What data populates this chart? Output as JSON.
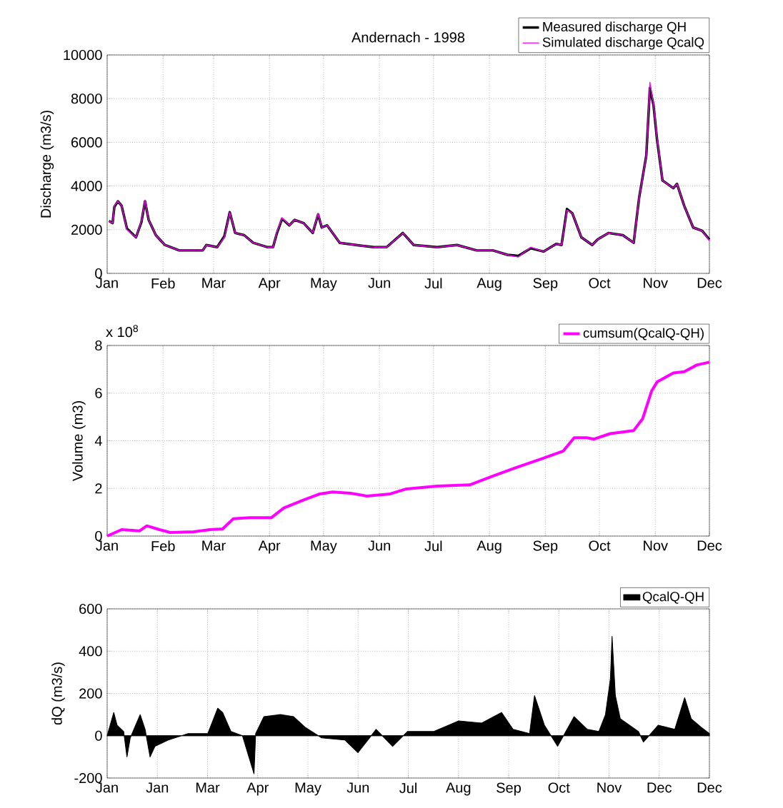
{
  "chart_data": [
    {
      "type": "line",
      "title": "Andernach - 1998",
      "ylabel": "Discharge (m3/s)",
      "x": [
        "1998-01-02",
        "1998-01-04",
        "1998-01-05",
        "1998-01-07",
        "1998-01-09",
        "1998-01-12",
        "1998-01-17",
        "1998-01-20",
        "1998-01-22",
        "1998-01-24",
        "1998-01-28",
        "1998-02-02",
        "1998-02-10",
        "1998-02-23",
        "1998-02-25",
        "1998-03-03",
        "1998-03-07",
        "1998-03-10",
        "1998-03-13",
        "1998-03-18",
        "1998-03-23",
        "1998-03-31",
        "1998-04-03",
        "1998-04-05",
        "1998-04-08",
        "1998-04-12",
        "1998-04-15",
        "1998-04-20",
        "1998-04-25",
        "1998-04-28",
        "1998-04-30",
        "1998-05-03",
        "1998-05-10",
        "1998-05-19",
        "1998-05-29",
        "1998-06-05",
        "1998-06-14",
        "1998-06-20",
        "1998-07-03",
        "1998-07-14",
        "1998-07-25",
        "1998-08-03",
        "1998-08-11",
        "1998-08-17",
        "1998-08-24",
        "1998-08-31",
        "1998-09-07",
        "1998-09-10",
        "1998-09-13",
        "1998-09-16",
        "1998-09-21",
        "1998-09-27",
        "1998-09-30",
        "1998-10-06",
        "1998-10-14",
        "1998-10-20",
        "1998-10-23",
        "1998-10-27",
        "1998-10-29",
        "1998-10-31",
        "1998-11-02",
        "1998-11-05",
        "1998-11-11",
        "1998-11-13",
        "1998-11-17",
        "1998-11-22",
        "1998-11-27",
        "1998-12-01"
      ],
      "series": [
        {
          "name": "Measured discharge QH",
          "color": "#000000",
          "values": [
            2400,
            2300,
            3050,
            3300,
            3100,
            2050,
            1650,
            2350,
            3300,
            2450,
            1750,
            1300,
            1050,
            1050,
            1300,
            1200,
            1700,
            2800,
            1850,
            1750,
            1400,
            1200,
            1200,
            1800,
            2500,
            2200,
            2450,
            2300,
            1850,
            2700,
            2100,
            2200,
            1400,
            1300,
            1200,
            1200,
            1850,
            1300,
            1200,
            1300,
            1050,
            1050,
            850,
            800,
            1150,
            1000,
            1350,
            1300,
            2950,
            2750,
            1650,
            1300,
            1550,
            1850,
            1750,
            1400,
            3450,
            5400,
            8500,
            7700,
            6100,
            4250,
            3900,
            4100,
            3100,
            2100,
            1950,
            1550
          ]
        },
        {
          "name": "Simulated discharge QcalQ",
          "color": "#ff00ff",
          "values": [
            2400,
            2300,
            3100,
            3300,
            3100,
            2000,
            1650,
            2400,
            3350,
            2450,
            1750,
            1300,
            1050,
            1050,
            1300,
            1200,
            1650,
            2800,
            1850,
            1750,
            1400,
            1200,
            1200,
            1850,
            2550,
            2200,
            2450,
            2300,
            1850,
            2750,
            2100,
            2200,
            1400,
            1300,
            1200,
            1200,
            1850,
            1300,
            1200,
            1300,
            1050,
            1050,
            850,
            750,
            1200,
            1000,
            1350,
            1300,
            2900,
            2750,
            1650,
            1300,
            1550,
            1850,
            1750,
            1400,
            3450,
            5400,
            8750,
            7750,
            6150,
            4250,
            3900,
            4100,
            3100,
            2100,
            1950,
            1500
          ]
        }
      ],
      "xlim": [
        "1998-01-01",
        "1998-12-01"
      ],
      "xticks": [
        {
          "value": "1998-01-01",
          "label": "Jan"
        },
        {
          "value": "1998-02-01",
          "label": "Feb"
        },
        {
          "value": "1998-03-01",
          "label": "Mar"
        },
        {
          "value": "1998-04-01",
          "label": "Apr"
        },
        {
          "value": "1998-05-01",
          "label": "May"
        },
        {
          "value": "1998-06-01",
          "label": "Jun"
        },
        {
          "value": "1998-07-01",
          "label": "Jul"
        },
        {
          "value": "1998-08-01",
          "label": "Aug"
        },
        {
          "value": "1998-09-01",
          "label": "Sep"
        },
        {
          "value": "1998-10-01",
          "label": "Oct"
        },
        {
          "value": "1998-11-01",
          "label": "Nov"
        },
        {
          "value": "1998-12-01",
          "label": "Dec"
        }
      ],
      "ylim": [
        0,
        10000
      ],
      "yticks": [
        0,
        2000,
        4000,
        6000,
        8000,
        10000
      ],
      "grid": true,
      "legend": "top right"
    },
    {
      "type": "line",
      "ylabel": "Volume (m3)",
      "annotations": [
        "x 10$^{8}$"
      ],
      "x": [
        "1998-01-01",
        "1998-01-09",
        "1998-01-19",
        "1998-01-23",
        "1998-01-30",
        "1998-02-05",
        "1998-02-18",
        "1998-02-27",
        "1998-03-06",
        "1998-03-12",
        "1998-03-21",
        "1998-04-02",
        "1998-04-09",
        "1998-04-20",
        "1998-04-29",
        "1998-05-06",
        "1998-05-16",
        "1998-05-25",
        "1998-06-07",
        "1998-06-16",
        "1998-07-03",
        "1998-07-21",
        "1998-08-03",
        "1998-08-16",
        "1998-08-31",
        "1998-09-11",
        "1998-09-17",
        "1998-09-24",
        "1998-09-28",
        "1998-10-07",
        "1998-10-20",
        "1998-10-25",
        "1998-10-30",
        "1998-11-02",
        "1998-11-11",
        "1998-11-17",
        "1998-11-24",
        "1998-12-01"
      ],
      "series": [
        {
          "name": "cumsum(QcalQ-QH)",
          "color": "#ff00ff",
          "values": [
            0,
            0.27,
            0.22,
            0.43,
            0.27,
            0.15,
            0.18,
            0.27,
            0.3,
            0.73,
            0.77,
            0.77,
            1.18,
            1.52,
            1.77,
            1.85,
            1.8,
            1.68,
            1.77,
            1.98,
            2.1,
            2.15,
            2.52,
            2.88,
            3.27,
            3.57,
            4.13,
            4.13,
            4.07,
            4.3,
            4.43,
            4.93,
            6.1,
            6.47,
            6.85,
            6.9,
            7.18,
            7.3
          ]
        }
      ],
      "xlim": [
        "1998-01-01",
        "1998-12-01"
      ],
      "xticks": [
        {
          "value": "1998-01-01",
          "label": "Jan"
        },
        {
          "value": "1998-02-01",
          "label": "Feb"
        },
        {
          "value": "1998-03-01",
          "label": "Mar"
        },
        {
          "value": "1998-04-01",
          "label": "Apr"
        },
        {
          "value": "1998-05-01",
          "label": "May"
        },
        {
          "value": "1998-06-01",
          "label": "Jun"
        },
        {
          "value": "1998-07-01",
          "label": "Jul"
        },
        {
          "value": "1998-08-01",
          "label": "Aug"
        },
        {
          "value": "1998-09-01",
          "label": "Sep"
        },
        {
          "value": "1998-10-01",
          "label": "Oct"
        },
        {
          "value": "1998-11-01",
          "label": "Nov"
        },
        {
          "value": "1998-12-01",
          "label": "Dec"
        }
      ],
      "ylim": [
        0,
        8
      ],
      "yticks": [
        0,
        2,
        4,
        6,
        8
      ],
      "grid": true,
      "legend": "top right"
    },
    {
      "type": "area",
      "ylabel": "dQ (m3/s)",
      "x": [
        "1998-01-01",
        "1998-01-05",
        "1998-01-07",
        "1998-01-11",
        "1998-01-13",
        "1998-01-15",
        "1998-01-21",
        "1998-01-24",
        "1998-01-27",
        "1998-01-30",
        "1998-02-07",
        "1998-02-19",
        "1998-03-03",
        "1998-03-09",
        "1998-03-12",
        "1998-03-17",
        "1998-03-24",
        "1998-03-31",
        "1998-04-01",
        "1998-04-06",
        "1998-04-16",
        "1998-04-24",
        "1998-05-01",
        "1998-05-11",
        "1998-05-25",
        "1998-06-02",
        "1998-06-13",
        "1998-06-23",
        "1998-07-02",
        "1998-07-18",
        "1998-08-02",
        "1998-08-16",
        "1998-08-28",
        "1998-09-04",
        "1998-09-14",
        "1998-09-17",
        "1998-09-23",
        "1998-10-01",
        "1998-10-11",
        "1998-10-19",
        "1998-10-26",
        "1998-10-30",
        "1998-11-02",
        "1998-11-03",
        "1998-11-05",
        "1998-11-08",
        "1998-11-19",
        "1998-11-22",
        "1998-12-01",
        "1998-12-11",
        "1998-12-17",
        "1998-12-21",
        "1998-12-27",
        "1998-12-31T23:59"
      ],
      "series": [
        {
          "name": "QcalQ-QH",
          "color": "#000000",
          "values": [
            0,
            110,
            50,
            20,
            -100,
            -10,
            100,
            30,
            -100,
            -50,
            -20,
            10,
            10,
            130,
            110,
            20,
            0,
            -180,
            10,
            90,
            100,
            90,
            40,
            -10,
            -20,
            -80,
            30,
            -50,
            20,
            20,
            70,
            60,
            110,
            30,
            10,
            190,
            50,
            -50,
            90,
            30,
            20,
            100,
            270,
            470,
            190,
            80,
            20,
            -30,
            50,
            30,
            180,
            80,
            40,
            10
          ]
        }
      ],
      "xlim": [
        "1998-01-01",
        "1998-12-31T23:59"
      ],
      "xticks": [
        {
          "value": "1998-01-01T00:00",
          "label": "Jan"
        },
        {
          "value": "1998-01-31T10:00",
          "label": "Jan"
        },
        {
          "value": "1998-03-02T20:00",
          "label": "Mar"
        },
        {
          "value": "1998-04-02T06:00",
          "label": "Apr"
        },
        {
          "value": "1998-05-02T16:00",
          "label": "May"
        },
        {
          "value": "1998-06-02T02:00",
          "label": "Jun"
        },
        {
          "value": "1998-07-02T12:00",
          "label": "Jul"
        },
        {
          "value": "1998-08-01T22:00",
          "label": "Aug"
        },
        {
          "value": "1998-09-01T08:00",
          "label": "Sep"
        },
        {
          "value": "1998-10-01T18:00",
          "label": "Oct"
        },
        {
          "value": "1998-11-01T04:00",
          "label": "Nov"
        },
        {
          "value": "1998-12-01T14:00",
          "label": "Dec"
        },
        {
          "value": "1998-12-31T23:59",
          "label": "Dec"
        }
      ],
      "ylim": [
        -200,
        600
      ],
      "yticks": [
        -200,
        0,
        200,
        400,
        600
      ],
      "grid": true,
      "legend": "top right"
    }
  ]
}
